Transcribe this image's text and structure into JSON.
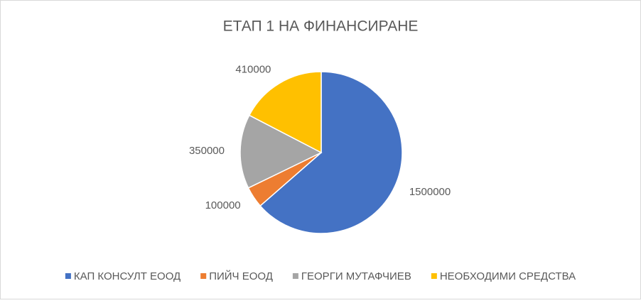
{
  "chart_data": {
    "type": "pie",
    "title": "ЕТАП 1 НА ФИНАНСИРАНЕ",
    "categories": [
      "КАП КОНСУЛТ ЕООД",
      "ПИЙЧ ЕООД",
      "ГЕОРГИ МУТАФЧИЕВ",
      "НЕОБХОДИМИ СРЕДСТВА"
    ],
    "values": [
      1500000,
      100000,
      350000,
      410000
    ],
    "colors": [
      "#4472c4",
      "#ed7d31",
      "#a5a5a5",
      "#ffc000"
    ],
    "legend": "bottom"
  }
}
